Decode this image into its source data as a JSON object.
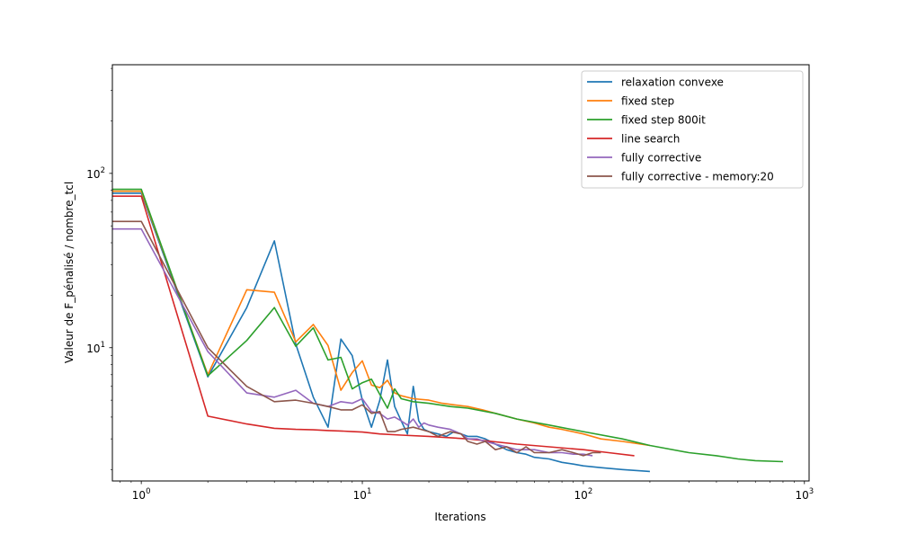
{
  "chart_data": {
    "type": "line",
    "title": "",
    "xlabel": "Iterations",
    "ylabel": "Valeur de F_pénalisé / nombre_tcl",
    "xscale": "log",
    "yscale": "log",
    "xlim": [
      0.74,
      1050
    ],
    "ylim": [
      1.72,
      420
    ],
    "x_ticks": [
      {
        "base": "10",
        "exp": "0"
      },
      {
        "base": "10",
        "exp": "1"
      },
      {
        "base": "10",
        "exp": "2"
      },
      {
        "base": "10",
        "exp": "3"
      }
    ],
    "y_ticks": [
      {
        "base": "10",
        "exp": "1"
      },
      {
        "base": "10",
        "exp": "2"
      }
    ],
    "grid": false,
    "legend_position": "top-right",
    "series": [
      {
        "name": "relaxation convexe",
        "color": "#1f77b4",
        "x": [
          0.74,
          1,
          2,
          3,
          4,
          5,
          6,
          7,
          8,
          9,
          10,
          11,
          12,
          13,
          14,
          15,
          16,
          17,
          18,
          19,
          20,
          22,
          24,
          26,
          28,
          30,
          33,
          36,
          40,
          45,
          50,
          55,
          60,
          70,
          80,
          90,
          100,
          120,
          150,
          200
        ],
        "y": [
          77,
          77,
          6.8,
          17,
          41,
          10.5,
          5.2,
          3.5,
          11.2,
          9.0,
          5.0,
          3.5,
          5.0,
          8.5,
          4.6,
          3.8,
          3.2,
          6.0,
          3.8,
          3.4,
          3.3,
          3.2,
          3.1,
          3.3,
          3.2,
          3.1,
          3.1,
          3.0,
          2.8,
          2.6,
          2.5,
          2.45,
          2.35,
          2.3,
          2.2,
          2.15,
          2.1,
          2.05,
          2.0,
          1.95
        ]
      },
      {
        "name": "fixed step",
        "color": "#ff7f0e",
        "x": [
          0.74,
          1,
          2,
          3,
          4,
          5,
          6,
          7,
          8,
          9,
          10,
          11,
          12,
          13,
          14,
          15,
          17,
          20,
          23,
          26,
          30,
          35,
          40,
          50,
          60,
          70,
          80,
          100,
          120,
          150,
          200
        ],
        "y": [
          79,
          79,
          7.0,
          21.5,
          20.8,
          10.8,
          13.6,
          10.3,
          5.7,
          7.2,
          8.4,
          6.1,
          5.9,
          6.5,
          5.5,
          5.3,
          5.1,
          5.0,
          4.8,
          4.7,
          4.6,
          4.4,
          4.2,
          3.9,
          3.7,
          3.5,
          3.4,
          3.2,
          3.0,
          2.9,
          2.75
        ]
      },
      {
        "name": "fixed step 800it",
        "color": "#2ca02c",
        "x": [
          0.74,
          1,
          2,
          3,
          4,
          5,
          6,
          7,
          8,
          9,
          10,
          11,
          12,
          13,
          14,
          15,
          17,
          20,
          25,
          30,
          40,
          50,
          70,
          100,
          150,
          200,
          300,
          400,
          500,
          600,
          800
        ],
        "y": [
          81,
          81,
          6.9,
          11.0,
          17.0,
          10.2,
          13.0,
          8.5,
          8.8,
          5.8,
          6.3,
          6.6,
          5.4,
          4.5,
          5.8,
          5.1,
          4.9,
          4.8,
          4.6,
          4.5,
          4.2,
          3.9,
          3.6,
          3.3,
          3.0,
          2.75,
          2.5,
          2.4,
          2.3,
          2.25,
          2.22
        ]
      },
      {
        "name": "line search",
        "color": "#d62728",
        "x": [
          0.74,
          1,
          2,
          3,
          4,
          5,
          6,
          7,
          8,
          9,
          10,
          12,
          15,
          20,
          30,
          50,
          70,
          100,
          130,
          170
        ],
        "y": [
          74,
          74,
          4.05,
          3.65,
          3.45,
          3.4,
          3.38,
          3.35,
          3.33,
          3.3,
          3.28,
          3.2,
          3.15,
          3.1,
          3.0,
          2.8,
          2.7,
          2.6,
          2.5,
          2.4
        ]
      },
      {
        "name": "fully corrective",
        "color": "#9467bd",
        "x": [
          0.74,
          1,
          2,
          3,
          4,
          5,
          6,
          7,
          8,
          9,
          10,
          11,
          12,
          13,
          14,
          15,
          16,
          17,
          18,
          19,
          20,
          22,
          25,
          28,
          30,
          33,
          36,
          40,
          45,
          50,
          60,
          70,
          80,
          90,
          100,
          110
        ],
        "y": [
          48,
          48,
          9.5,
          5.5,
          5.2,
          5.7,
          4.8,
          4.6,
          4.9,
          4.8,
          5.1,
          4.3,
          4.2,
          3.9,
          4.0,
          3.8,
          3.6,
          3.9,
          3.5,
          3.7,
          3.6,
          3.5,
          3.4,
          3.2,
          3.0,
          3.0,
          2.9,
          2.8,
          2.7,
          2.6,
          2.6,
          2.5,
          2.5,
          2.45,
          2.45,
          2.4
        ]
      },
      {
        "name": "fully corrective - memory:20",
        "color": "#8c564b",
        "x": [
          0.74,
          1,
          2,
          3,
          4,
          5,
          6,
          7,
          8,
          9,
          10,
          11,
          12,
          13,
          14,
          15,
          17,
          20,
          22,
          25,
          28,
          30,
          33,
          36,
          40,
          45,
          50,
          55,
          60,
          70,
          80,
          90,
          100,
          110,
          120
        ],
        "y": [
          53,
          53,
          10.0,
          6.0,
          4.9,
          5.0,
          4.8,
          4.6,
          4.4,
          4.4,
          4.7,
          4.2,
          4.3,
          3.3,
          3.3,
          3.4,
          3.5,
          3.3,
          3.1,
          3.3,
          3.2,
          2.9,
          2.8,
          2.9,
          2.6,
          2.7,
          2.5,
          2.7,
          2.5,
          2.5,
          2.6,
          2.5,
          2.4,
          2.5,
          2.5
        ]
      }
    ]
  }
}
